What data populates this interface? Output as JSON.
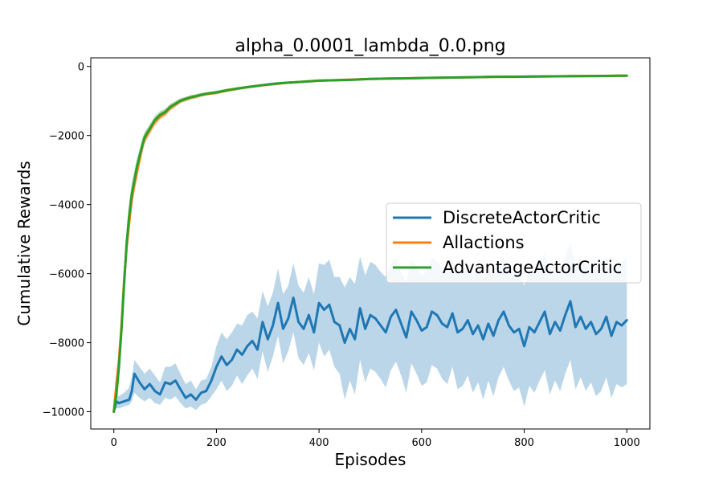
{
  "chart_data": {
    "type": "line",
    "title": "alpha_0.0001_lambda_0.0.png",
    "xlabel": "Episodes",
    "ylabel": "Cumulative Rewards",
    "xlim": [
      -45,
      1045
    ],
    "ylim": [
      -10500,
      250
    ],
    "x_ticks": [
      0,
      200,
      400,
      600,
      800,
      1000
    ],
    "y_ticks": [
      0,
      -2000,
      -4000,
      -6000,
      -8000,
      -10000
    ],
    "x_tick_labels": [
      "0",
      "200",
      "400",
      "600",
      "800",
      "1000"
    ],
    "y_tick_labels": [
      "0",
      "−2000",
      "−4000",
      "−6000",
      "−8000",
      "−10000"
    ],
    "legend_position": "center-right",
    "grid": false,
    "series": [
      {
        "name": "DiscreteActorCritic",
        "color": "#1f77b4",
        "band_color": "#1f77b4",
        "x": [
          0,
          5,
          10,
          20,
          30,
          35,
          40,
          50,
          60,
          70,
          80,
          90,
          100,
          110,
          120,
          130,
          140,
          150,
          160,
          170,
          180,
          190,
          200,
          210,
          220,
          230,
          240,
          250,
          260,
          270,
          280,
          290,
          300,
          310,
          320,
          330,
          340,
          350,
          360,
          370,
          380,
          390,
          400,
          410,
          420,
          430,
          440,
          450,
          460,
          470,
          480,
          490,
          500,
          510,
          520,
          530,
          540,
          550,
          560,
          570,
          580,
          590,
          600,
          610,
          620,
          630,
          640,
          650,
          660,
          670,
          680,
          690,
          700,
          710,
          720,
          730,
          740,
          750,
          760,
          770,
          780,
          790,
          800,
          810,
          820,
          830,
          840,
          850,
          860,
          870,
          880,
          890,
          900,
          910,
          920,
          930,
          940,
          950,
          960,
          970,
          980,
          990,
          1000
        ],
        "values": [
          -10000,
          -9700,
          -9750,
          -9700,
          -9650,
          -9400,
          -8900,
          -9150,
          -9350,
          -9200,
          -9400,
          -9500,
          -9150,
          -9200,
          -9100,
          -9350,
          -9600,
          -9500,
          -9650,
          -9450,
          -9400,
          -9100,
          -8700,
          -8400,
          -8650,
          -8500,
          -8200,
          -8350,
          -8100,
          -7950,
          -8200,
          -7400,
          -7900,
          -7500,
          -6850,
          -7600,
          -7300,
          -6700,
          -7400,
          -7600,
          -7200,
          -7700,
          -6850,
          -7050,
          -6900,
          -7400,
          -7500,
          -8000,
          -7600,
          -7900,
          -7000,
          -7600,
          -7200,
          -7300,
          -7500,
          -7700,
          -7250,
          -7050,
          -7450,
          -7850,
          -7100,
          -7350,
          -7650,
          -7550,
          -7100,
          -7200,
          -7450,
          -7550,
          -7150,
          -7700,
          -7600,
          -7350,
          -7750,
          -7500,
          -7900,
          -7450,
          -7800,
          -7350,
          -7100,
          -7500,
          -7700,
          -7600,
          -8100,
          -7550,
          -7700,
          -7400,
          -7100,
          -7750,
          -7400,
          -7650,
          -7200,
          -6800,
          -7550,
          -7250,
          -7600,
          -7400,
          -7750,
          -7600,
          -7250,
          -7800,
          -7400,
          -7500,
          -7350
        ],
        "lower": [
          -10000,
          -9900,
          -9900,
          -9850,
          -9800,
          -9700,
          -9450,
          -9600,
          -9700,
          -9600,
          -9750,
          -9800,
          -9600,
          -9650,
          -9550,
          -9750,
          -9900,
          -9850,
          -9950,
          -9800,
          -9750,
          -9550,
          -9350,
          -9100,
          -9400,
          -9250,
          -8950,
          -9200,
          -8950,
          -8750,
          -9050,
          -8250,
          -8850,
          -8400,
          -7800,
          -8600,
          -8250,
          -7700,
          -8450,
          -8650,
          -8300,
          -8800,
          -8000,
          -8400,
          -8200,
          -8700,
          -8900,
          -9650,
          -9100,
          -9500,
          -8500,
          -9150,
          -8750,
          -8850,
          -9050,
          -9300,
          -8800,
          -8550,
          -8950,
          -9450,
          -8600,
          -8900,
          -9250,
          -9150,
          -8650,
          -8750,
          -9050,
          -9200,
          -8700,
          -9350,
          -9250,
          -8950,
          -9450,
          -9150,
          -9650,
          -9100,
          -9550,
          -9000,
          -8700,
          -9100,
          -9400,
          -9300,
          -9850,
          -9250,
          -9450,
          -9100,
          -8800,
          -9500,
          -9100,
          -9400,
          -8900,
          -8500,
          -9350,
          -9000,
          -9400,
          -9150,
          -9550,
          -9400,
          -9000,
          -9600,
          -9200,
          -9300,
          -9200
        ],
        "upper": [
          -10000,
          -9500,
          -9550,
          -9450,
          -9300,
          -9000,
          -8500,
          -8700,
          -8900,
          -8750,
          -8950,
          -9150,
          -8700,
          -8700,
          -8600,
          -8900,
          -9200,
          -9100,
          -9350,
          -9100,
          -9050,
          -8700,
          -8100,
          -7700,
          -7900,
          -7700,
          -7450,
          -7500,
          -7200,
          -7100,
          -7300,
          -6500,
          -6950,
          -6550,
          -5850,
          -6600,
          -6350,
          -5700,
          -6350,
          -6550,
          -6100,
          -6600,
          -5700,
          -5750,
          -5600,
          -6100,
          -6100,
          -6400,
          -6100,
          -6300,
          -5500,
          -6050,
          -5650,
          -5750,
          -5950,
          -6100,
          -5700,
          -5550,
          -5950,
          -6250,
          -5600,
          -5800,
          -6050,
          -5950,
          -5550,
          -5650,
          -5850,
          -5900,
          -5600,
          -6050,
          -5950,
          -5750,
          -6050,
          -5850,
          -6150,
          -5800,
          -6050,
          -5700,
          -5500,
          -5900,
          -6000,
          -5900,
          -6350,
          -5850,
          -5950,
          -5700,
          -5400,
          -6000,
          -5700,
          -5900,
          -5500,
          -5100,
          -5750,
          -5500,
          -5800,
          -5650,
          -5950,
          -5800,
          -5500,
          -6000,
          -5600,
          -5700,
          -5500
        ]
      },
      {
        "name": "Allactions",
        "color": "#ff7f0e",
        "band_color": "#ff7f0e",
        "x": [
          0,
          5,
          10,
          15,
          20,
          25,
          30,
          35,
          40,
          45,
          50,
          55,
          60,
          70,
          80,
          90,
          100,
          110,
          120,
          130,
          140,
          150,
          160,
          170,
          180,
          190,
          200,
          220,
          240,
          260,
          280,
          300,
          320,
          340,
          360,
          380,
          400,
          430,
          460,
          500,
          540,
          580,
          620,
          660,
          700,
          740,
          780,
          820,
          860,
          900,
          940,
          980,
          1000
        ],
        "values": [
          -10000,
          -9200,
          -8500,
          -7500,
          -6200,
          -5200,
          -4500,
          -3800,
          -3400,
          -3050,
          -2700,
          -2350,
          -2100,
          -1850,
          -1600,
          -1450,
          -1350,
          -1200,
          -1100,
          -1000,
          -950,
          -900,
          -870,
          -830,
          -800,
          -780,
          -760,
          -700,
          -650,
          -600,
          -560,
          -530,
          -500,
          -470,
          -450,
          -430,
          -410,
          -400,
          -380,
          -360,
          -350,
          -340,
          -330,
          -320,
          -310,
          -300,
          -295,
          -290,
          -285,
          -280,
          -275,
          -270,
          -270
        ],
        "lower": [
          -10000,
          -9400,
          -8800,
          -7900,
          -6600,
          -5600,
          -4900,
          -4150,
          -3700,
          -3300,
          -2900,
          -2550,
          -2250,
          -1980,
          -1720,
          -1560,
          -1450,
          -1290,
          -1180,
          -1070,
          -1010,
          -960,
          -930,
          -880,
          -850,
          -830,
          -810,
          -745,
          -690,
          -640,
          -600,
          -565,
          -535,
          -505,
          -480,
          -460,
          -440,
          -430,
          -410,
          -390,
          -380,
          -370,
          -360,
          -350,
          -340,
          -330,
          -325,
          -320,
          -315,
          -310,
          -305,
          -300,
          -300
        ],
        "upper": [
          -10000,
          -9000,
          -8200,
          -7100,
          -5800,
          -4800,
          -4100,
          -3450,
          -3100,
          -2800,
          -2500,
          -2150,
          -1950,
          -1720,
          -1480,
          -1340,
          -1250,
          -1110,
          -1020,
          -930,
          -890,
          -840,
          -810,
          -780,
          -750,
          -730,
          -710,
          -655,
          -610,
          -560,
          -520,
          -495,
          -465,
          -435,
          -420,
          -400,
          -380,
          -370,
          -350,
          -330,
          -320,
          -310,
          -300,
          -290,
          -280,
          -270,
          -265,
          -260,
          -255,
          -250,
          -245,
          -240,
          -240
        ]
      },
      {
        "name": "AdvantageActorCritic",
        "color": "#2ca02c",
        "band_color": "#2ca02c",
        "x": [
          0,
          5,
          10,
          15,
          20,
          25,
          30,
          35,
          40,
          45,
          50,
          55,
          60,
          70,
          80,
          90,
          100,
          110,
          120,
          130,
          140,
          150,
          160,
          170,
          180,
          190,
          200,
          220,
          240,
          260,
          280,
          300,
          320,
          340,
          360,
          380,
          400,
          430,
          460,
          500,
          540,
          580,
          620,
          660,
          700,
          740,
          780,
          820,
          860,
          900,
          940,
          980,
          1000
        ],
        "values": [
          -10000,
          -9500,
          -8700,
          -7600,
          -6300,
          -5100,
          -4300,
          -3700,
          -3300,
          -2900,
          -2600,
          -2300,
          -2050,
          -1800,
          -1550,
          -1400,
          -1320,
          -1170,
          -1080,
          -990,
          -940,
          -890,
          -860,
          -820,
          -790,
          -770,
          -750,
          -690,
          -640,
          -600,
          -560,
          -520,
          -490,
          -470,
          -450,
          -430,
          -410,
          -400,
          -390,
          -360,
          -350,
          -340,
          -330,
          -320,
          -310,
          -300,
          -300,
          -290,
          -285,
          -280,
          -275,
          -270,
          -270
        ],
        "lower": [
          -10000,
          -9700,
          -9000,
          -8000,
          -6700,
          -5500,
          -4700,
          -4050,
          -3600,
          -3150,
          -2800,
          -2500,
          -2200,
          -1930,
          -1670,
          -1510,
          -1420,
          -1260,
          -1160,
          -1060,
          -1000,
          -950,
          -920,
          -870,
          -840,
          -820,
          -800,
          -735,
          -680,
          -640,
          -600,
          -555,
          -525,
          -505,
          -480,
          -460,
          -440,
          -430,
          -420,
          -390,
          -380,
          -370,
          -360,
          -350,
          -340,
          -330,
          -330,
          -320,
          -315,
          -310,
          -305,
          -300,
          -300
        ],
        "upper": [
          -10000,
          -9300,
          -8400,
          -7200,
          -5900,
          -4700,
          -3900,
          -3350,
          -3000,
          -2650,
          -2400,
          -2100,
          -1900,
          -1670,
          -1430,
          -1290,
          -1220,
          -1080,
          -1000,
          -920,
          -880,
          -830,
          -800,
          -770,
          -740,
          -720,
          -700,
          -645,
          -600,
          -560,
          -520,
          -485,
          -455,
          -435,
          -420,
          -400,
          -380,
          -370,
          -360,
          -330,
          -320,
          -310,
          -300,
          -290,
          -280,
          -270,
          -270,
          -260,
          -255,
          -250,
          -245,
          -240,
          -240
        ]
      }
    ]
  }
}
